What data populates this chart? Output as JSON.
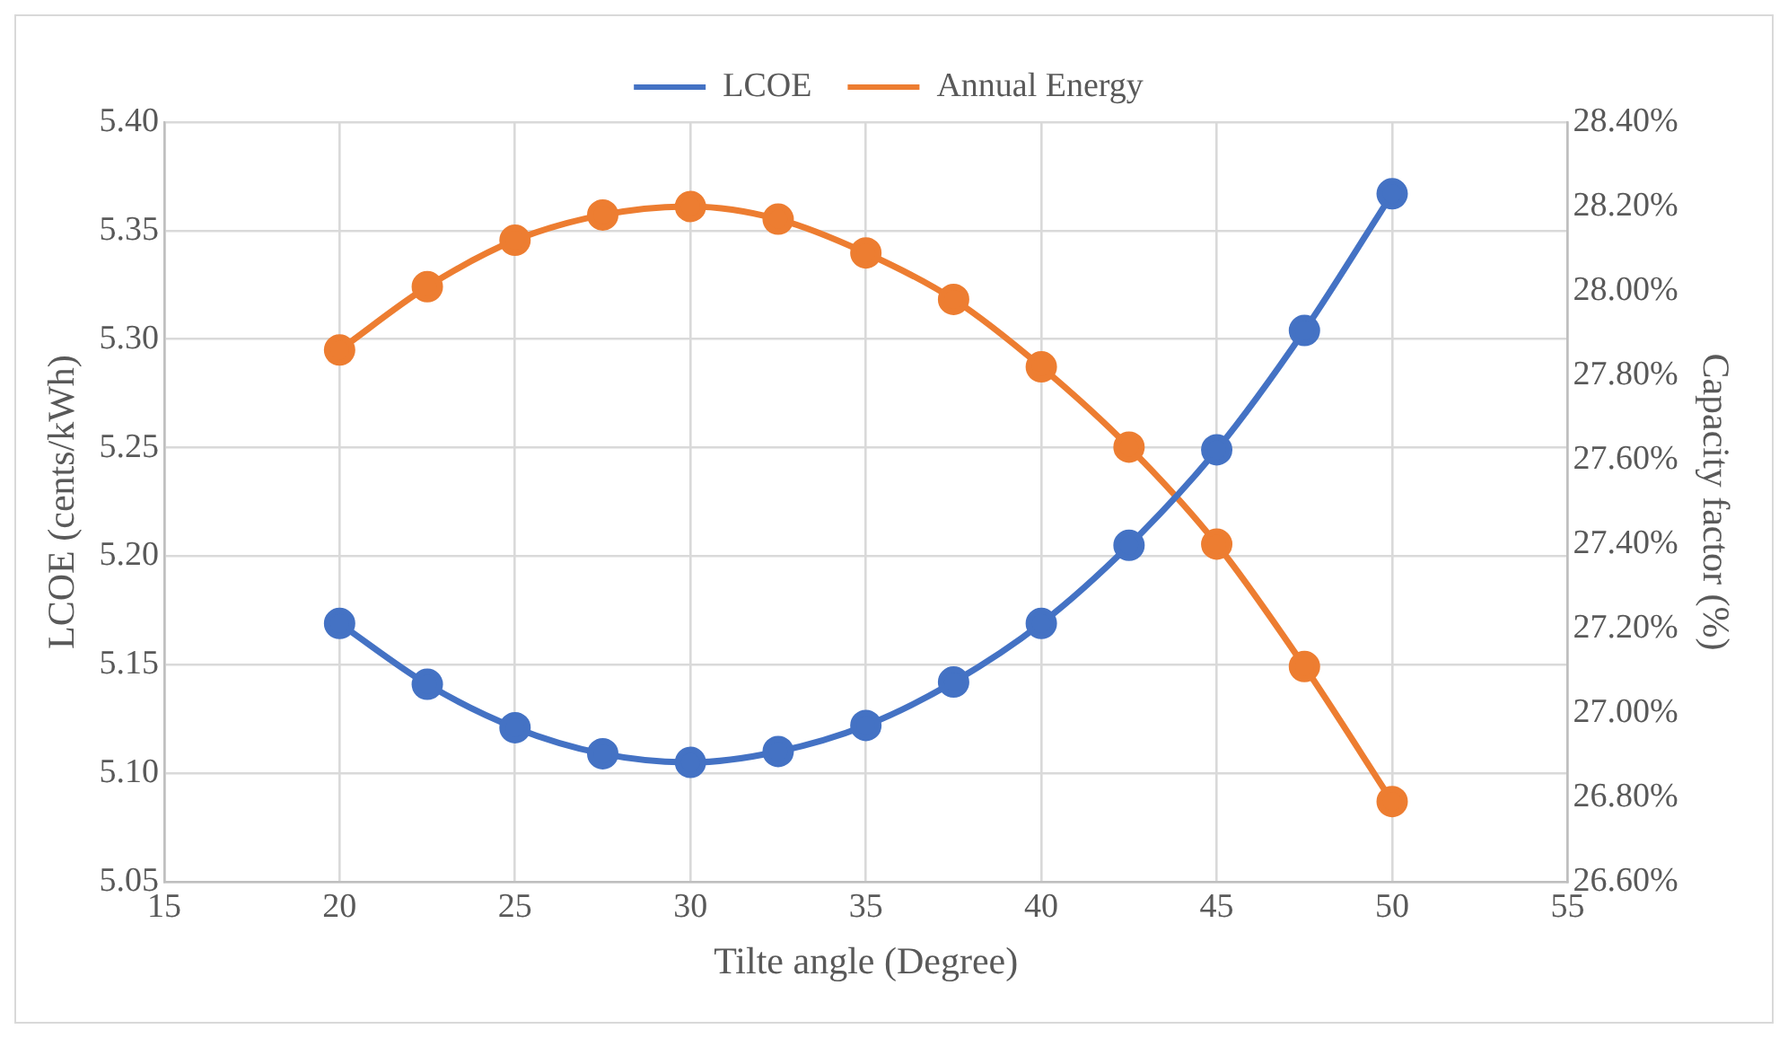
{
  "chart_data": {
    "type": "line",
    "xlabel": "Tilte angle (Degree)",
    "ylabel": "LCOE (cents/kWh)",
    "y2label": "Capacity factor (%)",
    "x": [
      20,
      22.5,
      25,
      27.5,
      30,
      32.5,
      35,
      37.5,
      40,
      42.5,
      45,
      47.5,
      50
    ],
    "series": [
      {
        "name": "LCOE",
        "color": "#4472c4",
        "values": [
          5.169,
          5.141,
          5.121,
          5.109,
          5.105,
          5.11,
          5.122,
          5.142,
          5.169,
          5.205,
          5.249,
          5.304,
          5.367
        ]
      },
      {
        "name": "Annual Energy",
        "color": "#ed7d31",
        "axis": "y2",
        "values": [
          27.86,
          28.01,
          28.12,
          28.18,
          28.2,
          28.17,
          28.09,
          27.98,
          27.82,
          27.63,
          27.4,
          27.11,
          26.79
        ]
      }
    ],
    "xlim": [
      15,
      55
    ],
    "xticks": [
      15,
      20,
      25,
      30,
      35,
      40,
      45,
      50,
      55
    ],
    "ylim": [
      5.05,
      5.4
    ],
    "yticks": [
      {
        "value": 5.05,
        "label": "5.05"
      },
      {
        "value": 5.1,
        "label": "5.10"
      },
      {
        "value": 5.15,
        "label": "5.15"
      },
      {
        "value": 5.2,
        "label": "5.20"
      },
      {
        "value": 5.25,
        "label": "5.25"
      },
      {
        "value": 5.3,
        "label": "5.30"
      },
      {
        "value": 5.35,
        "label": "5.35"
      },
      {
        "value": 5.4,
        "label": "5.40"
      }
    ],
    "y2lim": [
      26.6,
      28.4
    ],
    "y2ticks": [
      {
        "value": 26.6,
        "label": "26.60%"
      },
      {
        "value": 26.8,
        "label": "26.80%"
      },
      {
        "value": 27,
        "label": "27.00%"
      },
      {
        "value": 27.2,
        "label": "27.20%"
      },
      {
        "value": 27.4,
        "label": "27.40%"
      },
      {
        "value": 27.6,
        "label": "27.60%"
      },
      {
        "value": 27.8,
        "label": "27.80%"
      },
      {
        "value": 28,
        "label": "28.00%"
      },
      {
        "value": 28.2,
        "label": "28.20%"
      },
      {
        "value": 28.4,
        "label": "28.40%"
      }
    ],
    "grid": true,
    "legend": "top",
    "marker": "circle",
    "line_style": "solid"
  }
}
